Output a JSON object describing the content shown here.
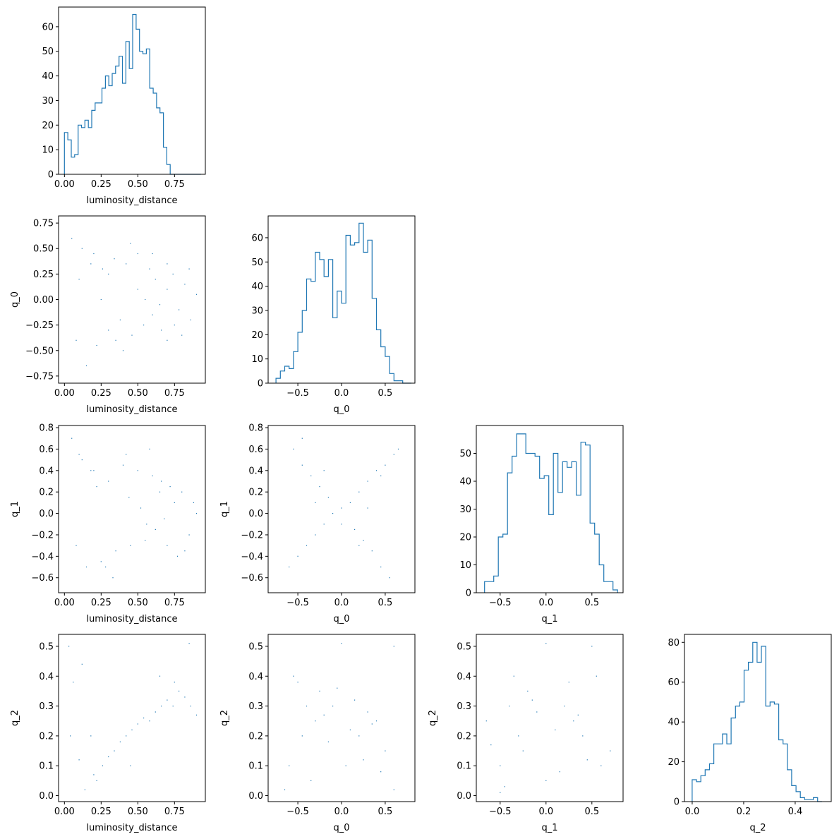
{
  "colors": {
    "series": "#1f77b4",
    "axes": "#000000",
    "background": "#ffffff"
  },
  "chart_data": [
    {
      "type": "histogram",
      "grid": false,
      "xlabel": "luminosity_distance",
      "ylabel": "",
      "xlim": [
        -0.04,
        0.96
      ],
      "ylim": [
        0,
        68
      ],
      "xticks": [
        0.0,
        0.25,
        0.5,
        0.75
      ],
      "xtick_labels": [
        "0.00",
        "0.25",
        "0.50",
        "0.75"
      ],
      "yticks": [
        0,
        10,
        20,
        30,
        40,
        50,
        60
      ],
      "ytick_labels": [
        "0",
        "10",
        "20",
        "30",
        "40",
        "50",
        "60"
      ],
      "bin_edges": [
        0.0,
        0.0232,
        0.0465,
        0.0697,
        0.093,
        0.1162,
        0.1395,
        0.1627,
        0.186,
        0.2092,
        0.2325,
        0.2557,
        0.279,
        0.3022,
        0.3255,
        0.3487,
        0.372,
        0.3952,
        0.4185,
        0.4417,
        0.465,
        0.4882,
        0.5115,
        0.5347,
        0.558,
        0.5812,
        0.6045,
        0.6277,
        0.651,
        0.6742,
        0.6975,
        0.7207,
        0.744,
        0.7672,
        0.7905,
        0.8137,
        0.837,
        0.8602,
        0.8835,
        0.9067,
        0.93
      ],
      "counts": [
        17,
        14,
        7,
        8,
        20,
        19,
        22,
        19,
        26,
        29,
        29,
        35,
        40,
        36,
        41,
        44,
        48,
        37,
        54,
        43,
        65,
        59,
        50,
        49,
        51,
        35,
        33,
        27,
        25,
        11,
        4,
        0,
        0,
        0,
        0,
        0,
        0,
        0,
        0,
        0
      ]
    },
    {
      "type": "scatter",
      "grid": false,
      "xlabel": "luminosity_distance",
      "ylabel": "q_0",
      "xlim": [
        -0.04,
        0.96
      ],
      "ylim": [
        -0.82,
        0.82
      ],
      "xticks": [
        0.0,
        0.25,
        0.5,
        0.75
      ],
      "xtick_labels": [
        "0.00",
        "0.25",
        "0.50",
        "0.75"
      ],
      "yticks": [
        -0.75,
        -0.5,
        -0.25,
        0.0,
        0.25,
        0.5,
        0.75
      ],
      "ytick_labels": [
        "−0.75",
        "−0.50",
        "−0.25",
        "0.00",
        "0.25",
        "0.50",
        "0.75"
      ],
      "x": [
        0.05,
        0.08,
        0.12,
        0.15,
        0.18,
        0.22,
        0.26,
        0.3,
        0.34,
        0.38,
        0.42,
        0.46,
        0.5,
        0.54,
        0.58,
        0.62,
        0.66,
        0.7,
        0.74,
        0.78,
        0.82,
        0.86,
        0.9,
        0.1,
        0.2,
        0.3,
        0.4,
        0.5,
        0.6,
        0.7,
        0.8,
        0.45,
        0.55,
        0.65,
        0.75,
        0.35,
        0.25,
        0.85,
        0.6,
        0.7
      ],
      "y": [
        0.6,
        -0.4,
        0.5,
        -0.65,
        0.35,
        -0.45,
        0.3,
        -0.3,
        0.4,
        -0.2,
        0.35,
        -0.35,
        0.45,
        -0.25,
        0.3,
        0.2,
        -0.3,
        0.1,
        0.25,
        -0.1,
        0.15,
        -0.2,
        0.05,
        0.2,
        0.45,
        0.25,
        -0.5,
        0.1,
        -0.15,
        0.35,
        -0.35,
        0.55,
        0.0,
        -0.05,
        -0.25,
        -0.4,
        0.0,
        0.3,
        0.45,
        -0.4
      ]
    },
    {
      "type": "histogram",
      "grid": false,
      "xlabel": "q_0",
      "ylabel": "",
      "xlim": [
        -0.84,
        0.84
      ],
      "ylim": [
        0,
        69
      ],
      "xticks": [
        -0.5,
        0.0,
        0.5
      ],
      "xtick_labels": [
        "−0.5",
        "0.0",
        "0.5"
      ],
      "yticks": [
        0,
        10,
        20,
        30,
        40,
        50,
        60
      ],
      "ytick_labels": [
        "0",
        "10",
        "20",
        "30",
        "40",
        "50",
        "60"
      ],
      "bin_edges": [
        -0.75,
        -0.7,
        -0.65,
        -0.6,
        -0.55,
        -0.5,
        -0.45,
        -0.4,
        -0.35,
        -0.3,
        -0.25,
        -0.2,
        -0.15,
        -0.1,
        -0.05,
        0.0,
        0.05,
        0.1,
        0.15,
        0.2,
        0.25,
        0.3,
        0.35,
        0.4,
        0.45,
        0.5,
        0.55,
        0.6,
        0.65,
        0.7,
        0.75,
        0.8
      ],
      "counts": [
        2,
        5,
        7,
        6,
        13,
        21,
        30,
        43,
        42,
        54,
        51,
        44,
        51,
        27,
        38,
        33,
        61,
        57,
        58,
        66,
        54,
        59,
        35,
        22,
        15,
        11,
        4,
        1,
        1,
        0,
        0
      ]
    },
    {
      "type": "scatter",
      "grid": false,
      "xlabel": "luminosity_distance",
      "ylabel": "q_1",
      "xlim": [
        -0.04,
        0.96
      ],
      "ylim": [
        -0.74,
        0.82
      ],
      "xticks": [
        0.0,
        0.25,
        0.5,
        0.75
      ],
      "xtick_labels": [
        "0.00",
        "0.25",
        "0.50",
        "0.75"
      ],
      "yticks": [
        -0.6,
        -0.4,
        -0.2,
        0.0,
        0.2,
        0.4,
        0.6,
        0.8
      ],
      "ytick_labels": [
        "−0.6",
        "−0.4",
        "−0.2",
        "0.0",
        "0.2",
        "0.4",
        "0.6",
        "0.8"
      ],
      "x": [
        0.05,
        0.08,
        0.12,
        0.15,
        0.2,
        0.25,
        0.3,
        0.35,
        0.4,
        0.45,
        0.5,
        0.55,
        0.6,
        0.65,
        0.7,
        0.75,
        0.8,
        0.85,
        0.9,
        0.1,
        0.22,
        0.33,
        0.44,
        0.56,
        0.66,
        0.77,
        0.88,
        0.42,
        0.52,
        0.62,
        0.72,
        0.28,
        0.18,
        0.82,
        0.58,
        0.68
      ],
      "y": [
        0.7,
        -0.3,
        0.5,
        -0.5,
        0.4,
        -0.45,
        0.3,
        -0.35,
        0.45,
        -0.3,
        0.4,
        -0.25,
        0.35,
        0.2,
        -0.3,
        0.1,
        0.2,
        -0.2,
        0.0,
        0.55,
        0.25,
        -0.6,
        0.15,
        -0.1,
        0.3,
        -0.4,
        0.1,
        0.55,
        0.05,
        -0.15,
        0.25,
        -0.5,
        0.4,
        -0.35,
        0.6,
        -0.05
      ]
    },
    {
      "type": "scatter",
      "grid": false,
      "xlabel": "q_0",
      "ylabel": "q_1",
      "xlim": [
        -0.84,
        0.84
      ],
      "ylim": [
        -0.74,
        0.82
      ],
      "xticks": [
        -0.5,
        0.0,
        0.5
      ],
      "xtick_labels": [
        "−0.5",
        "0.0",
        "0.5"
      ],
      "yticks": [
        -0.6,
        -0.4,
        -0.2,
        0.0,
        0.2,
        0.4,
        0.6,
        0.8
      ],
      "ytick_labels": [
        "−0.6",
        "−0.4",
        "−0.2",
        "0.0",
        "0.2",
        "0.4",
        "0.6",
        "0.8"
      ],
      "x": [
        -0.6,
        -0.5,
        -0.4,
        -0.3,
        -0.2,
        -0.1,
        0.0,
        0.1,
        0.2,
        0.3,
        0.4,
        0.5,
        0.6,
        -0.55,
        -0.45,
        -0.35,
        -0.25,
        -0.15,
        0.15,
        0.25,
        0.35,
        0.45,
        0.55,
        0.65,
        -0.45,
        0.45,
        -0.2,
        0.2,
        0.0,
        -0.3,
        0.3
      ],
      "y": [
        -0.5,
        -0.4,
        -0.3,
        -0.2,
        -0.1,
        0.0,
        0.05,
        0.1,
        0.2,
        0.3,
        0.4,
        0.45,
        0.55,
        0.6,
        0.45,
        0.35,
        0.25,
        0.15,
        -0.15,
        -0.25,
        -0.35,
        -0.5,
        -0.6,
        0.6,
        0.7,
        0.35,
        0.4,
        -0.3,
        -0.1,
        0.1,
        0.05
      ]
    },
    {
      "type": "histogram",
      "grid": false,
      "xlabel": "q_1",
      "ylabel": "",
      "xlim": [
        -0.76,
        0.84
      ],
      "ylim": [
        0,
        60
      ],
      "xticks": [
        -0.5,
        0.0,
        0.5
      ],
      "xtick_labels": [
        "−0.5",
        "0.0",
        "0.5"
      ],
      "yticks": [
        0,
        10,
        20,
        30,
        40,
        50
      ],
      "ytick_labels": [
        "0",
        "10",
        "20",
        "30",
        "40",
        "50"
      ],
      "bin_edges": [
        -0.67,
        -0.62,
        -0.57,
        -0.52,
        -0.47,
        -0.42,
        -0.37,
        -0.32,
        -0.27,
        -0.22,
        -0.17,
        -0.12,
        -0.07,
        -0.02,
        0.03,
        0.08,
        0.13,
        0.18,
        0.23,
        0.28,
        0.33,
        0.38,
        0.43,
        0.48,
        0.53,
        0.58,
        0.63,
        0.68,
        0.73,
        0.78
      ],
      "counts": [
        4,
        4,
        6,
        20,
        21,
        43,
        49,
        57,
        57,
        50,
        50,
        49,
        41,
        42,
        28,
        50,
        36,
        47,
        45,
        47,
        35,
        54,
        53,
        25,
        21,
        10,
        4,
        4,
        1
      ]
    },
    {
      "type": "scatter",
      "grid": false,
      "xlabel": "luminosity_distance",
      "ylabel": "q_2",
      "xlim": [
        -0.04,
        0.96
      ],
      "ylim": [
        -0.02,
        0.54
      ],
      "xticks": [
        0.0,
        0.25,
        0.5,
        0.75
      ],
      "xtick_labels": [
        "0.00",
        "0.25",
        "0.50",
        "0.75"
      ],
      "yticks": [
        0.0,
        0.1,
        0.2,
        0.3,
        0.4,
        0.5
      ],
      "ytick_labels": [
        "0.0",
        "0.1",
        "0.2",
        "0.3",
        "0.4",
        "0.5"
      ],
      "x": [
        0.03,
        0.06,
        0.1,
        0.14,
        0.18,
        0.22,
        0.26,
        0.3,
        0.34,
        0.38,
        0.42,
        0.46,
        0.5,
        0.54,
        0.58,
        0.62,
        0.66,
        0.7,
        0.74,
        0.78,
        0.82,
        0.86,
        0.9,
        0.04,
        0.12,
        0.85,
        0.2,
        0.45,
        0.65,
        0.75
      ],
      "y": [
        0.5,
        0.38,
        0.12,
        0.02,
        0.2,
        0.05,
        0.1,
        0.13,
        0.15,
        0.18,
        0.2,
        0.22,
        0.24,
        0.26,
        0.25,
        0.28,
        0.3,
        0.32,
        0.3,
        0.35,
        0.33,
        0.3,
        0.27,
        0.2,
        0.44,
        0.51,
        0.07,
        0.1,
        0.4,
        0.38
      ]
    },
    {
      "type": "scatter",
      "grid": false,
      "xlabel": "q_0",
      "ylabel": "q_2",
      "xlim": [
        -0.84,
        0.84
      ],
      "ylim": [
        -0.02,
        0.54
      ],
      "xticks": [
        -0.5,
        0.0,
        0.5
      ],
      "xtick_labels": [
        "−0.5",
        "0.0",
        "0.5"
      ],
      "yticks": [
        0.0,
        0.1,
        0.2,
        0.3,
        0.4,
        0.5
      ],
      "ytick_labels": [
        "0.0",
        "0.1",
        "0.2",
        "0.3",
        "0.4",
        "0.5"
      ],
      "x": [
        -0.65,
        -0.6,
        -0.5,
        -0.45,
        -0.4,
        -0.3,
        -0.2,
        -0.1,
        0.0,
        0.1,
        0.2,
        0.3,
        0.4,
        0.5,
        0.6,
        -0.35,
        -0.25,
        -0.15,
        0.15,
        0.25,
        0.35,
        0.45,
        -0.05,
        0.05,
        0.6,
        -0.55
      ],
      "y": [
        0.02,
        0.1,
        0.38,
        0.2,
        0.3,
        0.25,
        0.27,
        0.3,
        0.51,
        0.22,
        0.2,
        0.28,
        0.25,
        0.15,
        0.5,
        0.05,
        0.35,
        0.18,
        0.32,
        0.12,
        0.24,
        0.08,
        0.36,
        0.1,
        0.02,
        0.4
      ]
    },
    {
      "type": "scatter",
      "grid": false,
      "xlabel": "q_1",
      "ylabel": "q_2",
      "xlim": [
        -0.76,
        0.84
      ],
      "ylim": [
        -0.02,
        0.54
      ],
      "xticks": [
        -0.5,
        0.0,
        0.5
      ],
      "xtick_labels": [
        "−0.5",
        "0.0",
        "0.5"
      ],
      "yticks": [
        0.0,
        0.1,
        0.2,
        0.3,
        0.4,
        0.5
      ],
      "ytick_labels": [
        "0.0",
        "0.1",
        "0.2",
        "0.3",
        "0.4",
        "0.5"
      ],
      "x": [
        -0.65,
        -0.6,
        -0.5,
        -0.4,
        -0.3,
        -0.2,
        -0.1,
        0.0,
        0.1,
        0.2,
        0.3,
        0.4,
        0.5,
        0.6,
        0.7,
        -0.45,
        -0.35,
        -0.25,
        -0.15,
        0.15,
        0.25,
        0.35,
        0.45,
        0.0,
        0.55,
        -0.5
      ],
      "y": [
        0.25,
        0.17,
        0.1,
        0.3,
        0.2,
        0.35,
        0.28,
        0.51,
        0.22,
        0.3,
        0.25,
        0.2,
        0.5,
        0.1,
        0.15,
        0.03,
        0.4,
        0.15,
        0.32,
        0.08,
        0.38,
        0.27,
        0.12,
        0.05,
        0.4,
        0.01
      ]
    },
    {
      "type": "histogram",
      "grid": false,
      "xlabel": "q_2",
      "ylabel": "",
      "xlim": [
        -0.03,
        0.54
      ],
      "ylim": [
        0,
        84
      ],
      "xticks": [
        0.0,
        0.2,
        0.4
      ],
      "xtick_labels": [
        "0.0",
        "0.2",
        "0.4"
      ],
      "yticks": [
        0,
        20,
        40,
        60,
        80
      ],
      "ytick_labels": [
        "0",
        "20",
        "40",
        "60",
        "80"
      ],
      "bin_edges": [
        0.0,
        0.0168,
        0.0336,
        0.0504,
        0.0672,
        0.084,
        0.1008,
        0.1176,
        0.1344,
        0.1512,
        0.168,
        0.1848,
        0.2016,
        0.2184,
        0.2352,
        0.252,
        0.2688,
        0.2856,
        0.3024,
        0.3192,
        0.336,
        0.3528,
        0.3696,
        0.3864,
        0.4032,
        0.42,
        0.4368,
        0.4536,
        0.4704,
        0.4872,
        0.504
      ],
      "counts": [
        11,
        10,
        13,
        16,
        19,
        29,
        29,
        34,
        29,
        42,
        48,
        50,
        66,
        70,
        80,
        70,
        78,
        48,
        50,
        49,
        31,
        29,
        16,
        8,
        5,
        2,
        1,
        1,
        2,
        0
      ]
    }
  ]
}
